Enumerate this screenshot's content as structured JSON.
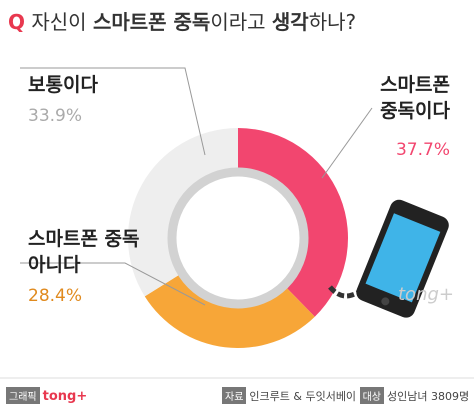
{
  "chart_data": {
    "type": "donut",
    "title_mark": "Q",
    "title_parts": [
      "자신이 ",
      "스마트폰 중독",
      "이라고 ",
      "생각",
      "하나?"
    ],
    "categories": [
      "스마트폰 중독이다",
      "스마트폰 중독 아니다",
      "보통이다"
    ],
    "values": [
      37.7,
      28.4,
      33.9
    ],
    "value_labels": [
      "37.7%",
      "28.4%",
      "33.9%"
    ],
    "colors": [
      "#f2466f",
      "#f7a638",
      "#eeeeee"
    ],
    "label_colors": [
      "#f2466f",
      "#e08a1e",
      "#aaaaaa"
    ]
  },
  "watermark": "tong+",
  "footer": {
    "credit_tag": "그래픽",
    "credit": "tong+",
    "source_tag": "자료",
    "source": "인크루트 & 두잇서베이",
    "target_tag": "대상",
    "target": "성인남녀 3809명"
  }
}
